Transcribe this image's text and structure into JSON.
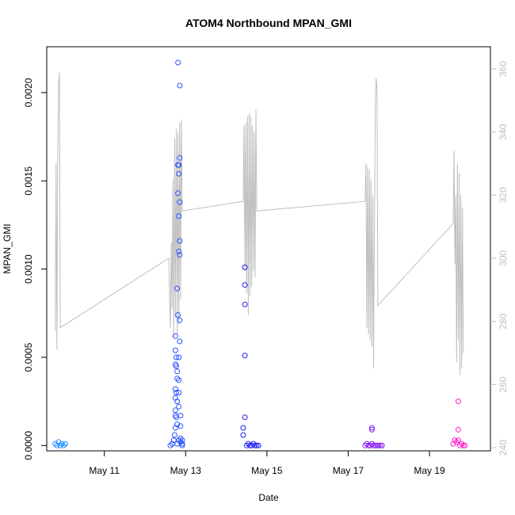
{
  "chart_data": {
    "type": "scatter",
    "title": "ATOM4 Northbound MPAN_GMI",
    "xlabel": "Date",
    "ylabel": "MPAN_GMI",
    "xlim": [
      "2016-05-09 14:00",
      "2016-05-20 12:00"
    ],
    "ylim": [
      -3e-05,
      0.00226
    ],
    "y2lim": [
      239,
      367
    ],
    "x_tick_labels": [
      {
        "date": "2016-05-11",
        "label": "May 11"
      },
      {
        "date": "2016-05-13",
        "label": "May 13"
      },
      {
        "date": "2016-05-15",
        "label": "May 15"
      },
      {
        "date": "2016-05-17",
        "label": "May 17"
      },
      {
        "date": "2016-05-19",
        "label": "May 19"
      }
    ],
    "y_tick_labels": [
      {
        "value": 0.0,
        "label": "0.0000"
      },
      {
        "value": 0.0005,
        "label": "0.0005"
      },
      {
        "value": 0.001,
        "label": "0.0010"
      },
      {
        "value": 0.0015,
        "label": "0.0015"
      },
      {
        "value": 0.002,
        "label": "0.0020"
      }
    ],
    "y2_tick_labels": [
      {
        "value": 240,
        "label": "240"
      },
      {
        "value": 260,
        "label": "260"
      },
      {
        "value": 280,
        "label": "280"
      },
      {
        "value": 300,
        "label": "300"
      },
      {
        "value": 320,
        "label": "320"
      },
      {
        "value": 340,
        "label": "340"
      },
      {
        "value": 360,
        "label": "360"
      }
    ],
    "grid": false,
    "legend": "none",
    "series": [
      {
        "color": "#1e90ff",
        "points": [
          [
            "2016-05-09 19:00",
            1e-05
          ],
          [
            "2016-05-09 20:00",
            0.0
          ],
          [
            "2016-05-09 21:00",
            2e-05
          ],
          [
            "2016-05-09 22:00",
            0.0
          ],
          [
            "2016-05-09 23:00",
            1e-05
          ],
          [
            "2016-05-10 00:00",
            0.0
          ],
          [
            "2016-05-10 01:00",
            1e-05
          ]
        ]
      },
      {
        "color": "#2a52ff",
        "points": [
          [
            "2016-05-12 15:00",
            0.0
          ],
          [
            "2016-05-12 16:00",
            1e-05
          ],
          [
            "2016-05-12 17:00",
            3e-05
          ],
          [
            "2016-05-12 17:30",
            6e-05
          ],
          [
            "2016-05-12 18:00",
            0.0001
          ],
          [
            "2016-05-12 18:00",
            0.00017
          ],
          [
            "2016-05-12 18:00",
            0.0002
          ],
          [
            "2016-05-12 18:00",
            0.00027
          ],
          [
            "2016-05-12 18:00",
            0.00032
          ],
          [
            "2016-05-12 18:00",
            0.00046
          ],
          [
            "2016-05-12 18:00",
            0.00054
          ],
          [
            "2016-05-12 18:00",
            0.00062
          ],
          [
            "2016-05-12 18:30",
            0.0005
          ],
          [
            "2016-05-12 18:30",
            0.00045
          ],
          [
            "2016-05-12 18:30",
            0.0003
          ],
          [
            "2016-05-12 18:30",
            0.00016
          ],
          [
            "2016-05-12 19:00",
            0.00042
          ],
          [
            "2016-05-12 19:00",
            0.00038
          ],
          [
            "2016-05-12 19:00",
            0.00025
          ],
          [
            "2016-05-12 19:00",
            0.00012
          ],
          [
            "2016-05-12 19:00",
            0.00089
          ],
          [
            "2016-05-12 19:30",
            0.00074
          ],
          [
            "2016-05-12 19:30",
            0.00143
          ],
          [
            "2016-05-12 19:30",
            0.00159
          ],
          [
            "2016-05-12 19:30",
            0.00217
          ],
          [
            "2016-05-12 20:00",
            0.00159
          ],
          [
            "2016-05-12 20:00",
            0.00154
          ],
          [
            "2016-05-12 20:00",
            0.0013
          ],
          [
            "2016-05-12 20:00",
            0.0011
          ],
          [
            "2016-05-12 20:30",
            0.00204
          ],
          [
            "2016-05-12 20:30",
            0.00163
          ],
          [
            "2016-05-12 20:30",
            0.00138
          ],
          [
            "2016-05-12 20:30",
            0.00116
          ],
          [
            "2016-05-12 20:30",
            0.00108
          ],
          [
            "2016-05-12 20:30",
            0.00071
          ],
          [
            "2016-05-12 20:30",
            0.00059
          ],
          [
            "2016-05-12 20:00",
            0.0005
          ],
          [
            "2016-05-12 20:00",
            0.00037
          ],
          [
            "2016-05-12 20:00",
            0.0003
          ],
          [
            "2016-05-12 20:00",
            0.00022
          ],
          [
            "2016-05-12 21:00",
            0.00017
          ],
          [
            "2016-05-12 21:00",
            0.00011
          ],
          [
            "2016-05-12 21:00",
            4e-05
          ],
          [
            "2016-05-12 21:00",
            2e-05
          ],
          [
            "2016-05-12 20:00",
            3e-05
          ],
          [
            "2016-05-12 19:00",
            1e-05
          ],
          [
            "2016-05-12 22:00",
            0.0
          ],
          [
            "2016-05-12 22:00",
            1e-05
          ],
          [
            "2016-05-12 22:00",
            3e-05
          ]
        ]
      },
      {
        "color": "#1e1ef0",
        "points": [
          [
            "2016-05-14 11:00",
            0.00101
          ],
          [
            "2016-05-14 11:00",
            0.00091
          ],
          [
            "2016-05-14 11:00",
            0.0008
          ],
          [
            "2016-05-14 11:00",
            0.00051
          ],
          [
            "2016-05-14 11:00",
            0.00016
          ],
          [
            "2016-05-14 10:00",
            0.0001
          ],
          [
            "2016-05-14 10:00",
            6e-05
          ],
          [
            "2016-05-14 12:00",
            0.0
          ],
          [
            "2016-05-14 13:00",
            1e-05
          ],
          [
            "2016-05-14 14:00",
            0.0
          ],
          [
            "2016-05-14 15:00",
            0.0
          ],
          [
            "2016-05-14 16:00",
            1e-05
          ],
          [
            "2016-05-14 17:00",
            0.0
          ],
          [
            "2016-05-14 18:00",
            0.0
          ],
          [
            "2016-05-14 19:00",
            0.0
          ]
        ]
      },
      {
        "color": "#8a1ef0",
        "points": [
          [
            "2016-05-17 10:00",
            0.0
          ],
          [
            "2016-05-17 11:00",
            1e-05
          ],
          [
            "2016-05-17 12:00",
            0.0
          ],
          [
            "2016-05-17 13:00",
            0.0
          ],
          [
            "2016-05-17 14:00",
            9e-05
          ],
          [
            "2016-05-17 14:00",
            0.0001
          ],
          [
            "2016-05-17 14:00",
            1e-05
          ],
          [
            "2016-05-17 15:00",
            0.0
          ],
          [
            "2016-05-17 16:00",
            0.0
          ],
          [
            "2016-05-17 17:00",
            0.0
          ],
          [
            "2016-05-17 18:00",
            0.0
          ],
          [
            "2016-05-17 19:00",
            0.0
          ],
          [
            "2016-05-17 20:00",
            0.0
          ]
        ]
      },
      {
        "color": "#ff1ec8",
        "points": [
          [
            "2016-05-19 14:00",
            1e-05
          ],
          [
            "2016-05-19 15:00",
            3e-05
          ],
          [
            "2016-05-19 16:00",
            2e-05
          ],
          [
            "2016-05-19 17:00",
            9e-05
          ],
          [
            "2016-05-19 17:00",
            0.00025
          ],
          [
            "2016-05-19 17:00",
            3e-05
          ],
          [
            "2016-05-19 18:00",
            0.0
          ],
          [
            "2016-05-19 19:00",
            1e-05
          ],
          [
            "2016-05-19 20:00",
            0.0
          ],
          [
            "2016-05-19 21:00",
            0.0
          ]
        ]
      }
    ],
    "secondary_series": {
      "color": "#bebebe",
      "axis": "right",
      "points": [
        [
          "2016-05-09 19:00",
          277
        ],
        [
          "2016-05-09 19:30",
          330
        ],
        [
          "2016-05-09 20:00",
          271
        ],
        [
          "2016-05-09 20:30",
          333
        ],
        [
          "2016-05-09 21:00",
          355
        ],
        [
          "2016-05-09 21:30",
          359
        ],
        [
          "2016-05-09 22:00",
          278
        ],
        [
          "2016-05-12 14:00",
          300
        ],
        [
          "2016-05-12 15:00",
          278
        ],
        [
          "2016-05-12 15:30",
          305
        ],
        [
          "2016-05-12 16:00",
          284
        ],
        [
          "2016-05-12 16:30",
          325
        ],
        [
          "2016-05-12 17:00",
          275
        ],
        [
          "2016-05-12 17:30",
          338
        ],
        [
          "2016-05-12 18:00",
          281
        ],
        [
          "2016-05-12 18:30",
          341
        ],
        [
          "2016-05-12 19:00",
          276
        ],
        [
          "2016-05-12 19:30",
          340
        ],
        [
          "2016-05-12 20:00",
          279
        ],
        [
          "2016-05-12 20:30",
          343
        ],
        [
          "2016-05-12 21:00",
          287
        ],
        [
          "2016-05-12 21:30",
          344
        ],
        [
          "2016-05-12 22:00",
          315
        ],
        [
          "2016-05-14 10:00",
          318
        ],
        [
          "2016-05-14 10:30",
          342
        ],
        [
          "2016-05-14 11:00",
          296
        ],
        [
          "2016-05-14 11:30",
          343
        ],
        [
          "2016-05-14 12:00",
          289
        ],
        [
          "2016-05-14 12:30",
          345
        ],
        [
          "2016-05-14 13:00",
          282
        ],
        [
          "2016-05-14 13:30",
          346
        ],
        [
          "2016-05-14 14:00",
          288
        ],
        [
          "2016-05-14 14:30",
          345
        ],
        [
          "2016-05-14 15:00",
          291
        ],
        [
          "2016-05-14 15:30",
          342
        ],
        [
          "2016-05-14 16:00",
          296
        ],
        [
          "2016-05-14 16:30",
          340
        ],
        [
          "2016-05-14 17:00",
          294
        ],
        [
          "2016-05-14 17:30",
          347
        ],
        [
          "2016-05-14 18:00",
          315
        ],
        [
          "2016-05-17 10:00",
          318
        ],
        [
          "2016-05-17 10:30",
          330
        ],
        [
          "2016-05-17 11:00",
          278
        ],
        [
          "2016-05-17 11:30",
          329
        ],
        [
          "2016-05-17 12:00",
          276
        ],
        [
          "2016-05-17 12:30",
          328
        ],
        [
          "2016-05-17 13:00",
          274
        ],
        [
          "2016-05-17 13:30",
          325
        ],
        [
          "2016-05-17 14:00",
          272
        ],
        [
          "2016-05-17 14:30",
          320
        ],
        [
          "2016-05-17 15:00",
          265
        ],
        [
          "2016-05-17 15:30",
          310
        ],
        [
          "2016-05-17 16:00",
          348
        ],
        [
          "2016-05-17 16:30",
          357
        ],
        [
          "2016-05-17 17:00",
          354
        ],
        [
          "2016-05-17 17:30",
          285
        ],
        [
          "2016-05-19 14:00",
          311
        ],
        [
          "2016-05-19 14:30",
          334
        ],
        [
          "2016-05-19 15:00",
          298
        ],
        [
          "2016-05-19 15:30",
          320
        ],
        [
          "2016-05-19 16:00",
          267
        ],
        [
          "2016-05-19 16:30",
          330
        ],
        [
          "2016-05-19 17:00",
          274
        ],
        [
          "2016-05-19 17:30",
          327
        ],
        [
          "2016-05-19 18:00",
          263
        ],
        [
          "2016-05-19 18:30",
          320
        ],
        [
          "2016-05-19 19:00",
          265
        ],
        [
          "2016-05-19 19:30",
          316
        ],
        [
          "2016-05-19 20:00",
          270
        ]
      ]
    }
  }
}
